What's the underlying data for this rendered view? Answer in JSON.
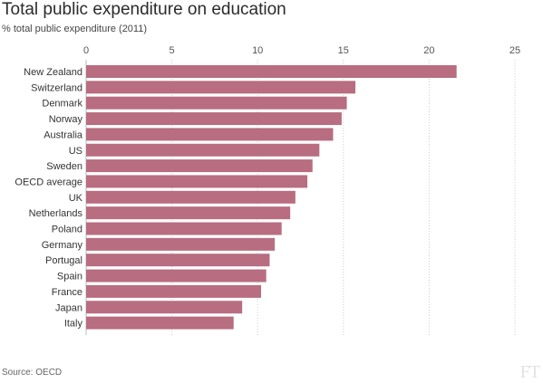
{
  "chart_data": {
    "type": "bar",
    "orientation": "horizontal",
    "title": "Total public expenditure on education",
    "subtitle": "% total public expenditure (2011)",
    "source": "Source: OECD",
    "logo": "FT",
    "xlim": [
      0,
      25
    ],
    "xticks": [
      0,
      5,
      10,
      15,
      20,
      25
    ],
    "grid": "vertical dotted",
    "bar_color": "#b86d80",
    "categories": [
      "New Zealand",
      "Switzerland",
      "Denmark",
      "Norway",
      "Australia",
      "US",
      "Sweden",
      "OECD average",
      "UK",
      "Netherlands",
      "Poland",
      "Germany",
      "Portugal",
      "Spain",
      "France",
      "Japan",
      "Italy"
    ],
    "values": [
      21.6,
      15.7,
      15.2,
      14.9,
      14.4,
      13.6,
      13.2,
      12.9,
      12.2,
      11.9,
      11.4,
      11.0,
      10.7,
      10.5,
      10.2,
      9.1,
      8.6
    ]
  }
}
